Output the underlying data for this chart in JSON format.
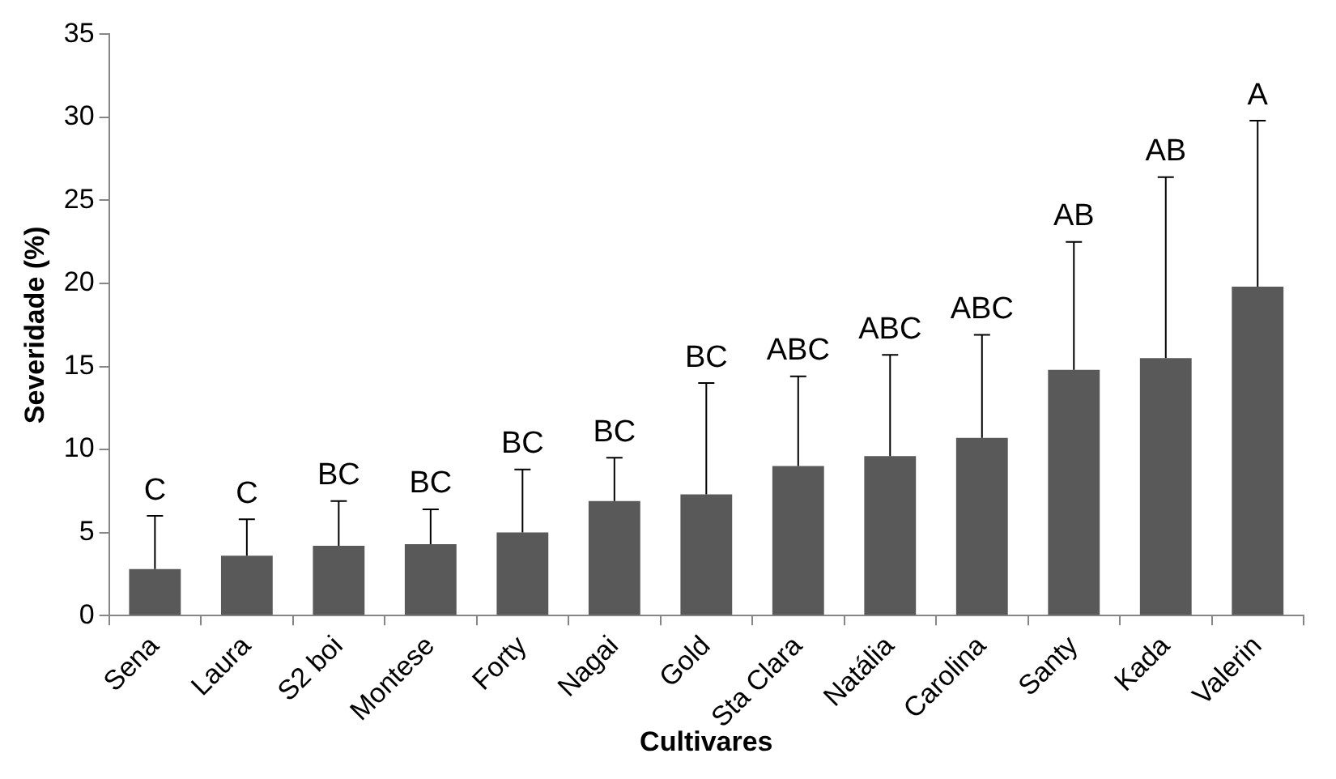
{
  "chart_data": {
    "type": "bar",
    "xlabel": "Cultivares",
    "ylabel": "Severidade (%)",
    "categories": [
      "Sena",
      "Laura",
      "S2 boi",
      "Montese",
      "Forty",
      "Nagai",
      "Gold",
      "Sta Clara",
      "Natália",
      "Carolina",
      "Santy",
      "Kada",
      "Valerin"
    ],
    "values": [
      2.8,
      3.6,
      4.2,
      4.3,
      5.0,
      6.9,
      7.3,
      9.0,
      9.6,
      10.7,
      14.8,
      15.5,
      19.8
    ],
    "errors": [
      [
        2.8,
        6.0
      ],
      [
        3.6,
        5.8
      ],
      [
        4.2,
        6.9
      ],
      [
        4.3,
        6.4
      ],
      [
        5.0,
        8.8
      ],
      [
        6.9,
        9.5
      ],
      [
        7.3,
        14.0
      ],
      [
        9.0,
        14.4
      ],
      [
        9.6,
        15.7
      ],
      [
        10.7,
        16.9
      ],
      [
        14.8,
        22.5
      ],
      [
        15.5,
        26.4
      ],
      [
        19.8,
        29.8
      ]
    ],
    "color": "#595959",
    "ylim": [
      0,
      35
    ],
    "yticks": [
      0,
      5,
      10,
      15,
      20,
      25,
      30,
      35
    ],
    "grid": false,
    "legend": false,
    "annotations": [
      {
        "text": "C",
        "x": "Sena",
        "y": 6.0
      },
      {
        "text": "C",
        "x": "Laura",
        "y": 5.8
      },
      {
        "text": "BC",
        "x": "S2 boi",
        "y": 6.9
      },
      {
        "text": "BC",
        "x": "Montese",
        "y": 6.4
      },
      {
        "text": "BC",
        "x": "Forty",
        "y": 8.8
      },
      {
        "text": "BC",
        "x": "Nagai",
        "y": 9.5
      },
      {
        "text": "BC",
        "x": "Gold",
        "y": 14.0
      },
      {
        "text": "ABC",
        "x": "Sta Clara",
        "y": 14.4
      },
      {
        "text": "ABC",
        "x": "Natália",
        "y": 15.7
      },
      {
        "text": "ABC",
        "x": "Carolina",
        "y": 16.9
      },
      {
        "text": "AB",
        "x": "Santy",
        "y": 22.5
      },
      {
        "text": "AB",
        "x": "Kada",
        "y": 26.4
      },
      {
        "text": "A",
        "x": "Valerin",
        "y": 29.8
      }
    ]
  }
}
